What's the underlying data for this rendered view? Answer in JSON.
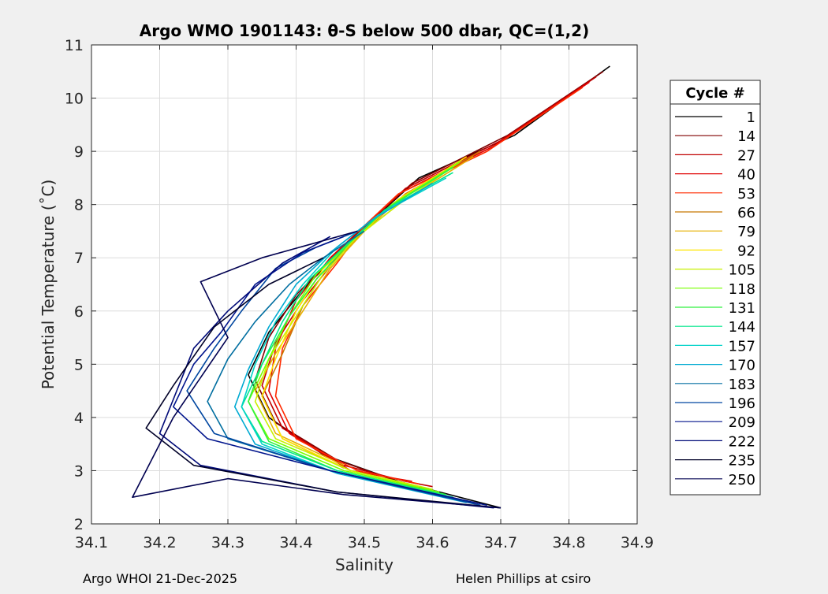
{
  "footer": {
    "left": "Argo WHOI 21-Dec-2025",
    "right": "Helen Phillips at csiro"
  },
  "chart_data": {
    "type": "line",
    "title": "Argo WMO 1901143: θ-S below 500 dbar,  QC=(1,2)",
    "xlabel": "Salinity",
    "ylabel": "Potential Temperature (˚C)",
    "xlim": [
      34.1,
      34.9
    ],
    "ylim": [
      2,
      11
    ],
    "xticks": [
      34.1,
      34.2,
      34.3,
      34.4,
      34.5,
      34.6,
      34.7,
      34.8,
      34.9
    ],
    "yticks": [
      2,
      3,
      4,
      5,
      6,
      7,
      8,
      9,
      10,
      11
    ],
    "grid": true,
    "legend": {
      "title": "Cycle #",
      "placement": "outside-right",
      "entries": [
        {
          "label": "1",
          "color": "#000000"
        },
        {
          "label": "14",
          "color": "#800000"
        },
        {
          "label": "27",
          "color": "#c00000"
        },
        {
          "label": "40",
          "color": "#e00000"
        },
        {
          "label": "53",
          "color": "#ff2a00"
        },
        {
          "label": "66",
          "color": "#c87800"
        },
        {
          "label": "79",
          "color": "#e6b000"
        },
        {
          "label": "92",
          "color": "#ffe600"
        },
        {
          "label": "105",
          "color": "#c8f000"
        },
        {
          "label": "118",
          "color": "#78ff00"
        },
        {
          "label": "131",
          "color": "#30f040"
        },
        {
          "label": "144",
          "color": "#00e68c"
        },
        {
          "label": "157",
          "color": "#00d2c8"
        },
        {
          "label": "170",
          "color": "#00aad2"
        },
        {
          "label": "183",
          "color": "#006ea0"
        },
        {
          "label": "196",
          "color": "#0046a0"
        },
        {
          "label": "209",
          "color": "#00148c"
        },
        {
          "label": "222",
          "color": "#000a78"
        },
        {
          "label": "235",
          "color": "#000028"
        },
        {
          "label": "250",
          "color": "#000050"
        }
      ]
    },
    "series": [
      {
        "cycle": 1,
        "color": "#000000",
        "s": [
          34.86,
          34.72,
          34.58,
          34.52,
          34.47,
          34.41,
          34.36,
          34.33,
          34.36,
          34.44,
          34.55,
          34.7
        ],
        "t": [
          10.6,
          9.3,
          8.5,
          7.8,
          7.2,
          6.4,
          5.6,
          4.8,
          4.0,
          3.3,
          2.8,
          2.3
        ]
      },
      {
        "cycle": 14,
        "color": "#800000",
        "s": [
          34.85,
          34.71,
          34.57,
          34.51,
          34.46,
          34.4,
          34.36,
          34.34,
          34.37,
          34.46,
          34.57,
          34.67
        ],
        "t": [
          10.5,
          9.3,
          8.4,
          7.7,
          7.1,
          6.3,
          5.5,
          4.7,
          3.9,
          3.2,
          2.7,
          2.35
        ]
      },
      {
        "cycle": 27,
        "color": "#c00000",
        "s": [
          34.84,
          34.7,
          34.56,
          34.51,
          34.46,
          34.41,
          34.37,
          34.35,
          34.38,
          34.47,
          34.56,
          34.6
        ],
        "t": [
          10.4,
          9.2,
          8.3,
          7.7,
          7.0,
          6.2,
          5.4,
          4.6,
          3.8,
          3.1,
          2.8,
          2.7
        ]
      },
      {
        "cycle": 40,
        "color": "#e00000",
        "s": [
          34.83,
          34.69,
          34.55,
          34.5,
          34.45,
          34.4,
          34.37,
          34.36,
          34.39,
          34.48,
          34.57
        ],
        "t": [
          10.3,
          9.1,
          8.2,
          7.6,
          7.0,
          6.2,
          5.3,
          4.5,
          3.7,
          3.0,
          2.8
        ]
      },
      {
        "cycle": 53,
        "color": "#ff2a00",
        "s": [
          34.82,
          34.68,
          34.55,
          34.5,
          34.46,
          34.41,
          34.38,
          34.37,
          34.4,
          34.49,
          34.58
        ],
        "t": [
          10.2,
          9.0,
          8.2,
          7.6,
          6.9,
          6.1,
          5.3,
          4.4,
          3.6,
          3.0,
          2.75
        ]
      },
      {
        "cycle": 66,
        "color": "#c87800",
        "s": [
          34.67,
          34.56,
          34.5,
          34.45,
          34.41,
          34.38,
          34.35,
          34.38,
          34.47
        ],
        "t": [
          9.0,
          8.2,
          7.5,
          6.9,
          6.1,
          5.2,
          4.4,
          3.6,
          3.05
        ]
      },
      {
        "cycle": 79,
        "color": "#e6b000",
        "s": [
          34.66,
          34.56,
          34.5,
          34.45,
          34.41,
          34.37,
          34.34,
          34.37,
          34.47
        ],
        "t": [
          8.9,
          8.1,
          7.5,
          6.8,
          6.0,
          5.2,
          4.5,
          3.7,
          3.1
        ]
      },
      {
        "cycle": 92,
        "color": "#ffe600",
        "s": [
          34.65,
          34.55,
          34.49,
          34.44,
          34.4,
          34.37,
          34.35,
          34.38,
          34.48,
          34.58
        ],
        "t": [
          8.9,
          8.1,
          7.4,
          6.8,
          6.0,
          5.1,
          4.4,
          3.6,
          3.0,
          2.7
        ]
      },
      {
        "cycle": 105,
        "color": "#c8f000",
        "s": [
          34.64,
          34.55,
          34.49,
          34.44,
          34.4,
          34.36,
          34.34,
          34.37,
          34.48,
          34.6
        ],
        "t": [
          8.8,
          8.0,
          7.4,
          6.7,
          5.9,
          5.1,
          4.3,
          3.6,
          3.0,
          2.65
        ]
      },
      {
        "cycle": 118,
        "color": "#78ff00",
        "s": [
          34.64,
          34.54,
          34.48,
          34.43,
          34.39,
          34.36,
          34.33,
          34.36,
          34.47,
          34.61
        ],
        "t": [
          8.8,
          8.0,
          7.3,
          6.7,
          5.9,
          5.1,
          4.3,
          3.6,
          3.0,
          2.6
        ]
      },
      {
        "cycle": 131,
        "color": "#30f040",
        "s": [
          34.63,
          34.53,
          34.48,
          34.43,
          34.39,
          34.35,
          34.33,
          34.36,
          34.46,
          34.62
        ],
        "t": [
          8.7,
          7.9,
          7.3,
          6.6,
          5.9,
          5.0,
          4.3,
          3.55,
          3.0,
          2.55
        ]
      },
      {
        "cycle": 144,
        "color": "#00e68c",
        "s": [
          34.63,
          34.53,
          34.47,
          34.42,
          34.38,
          34.35,
          34.32,
          34.35,
          34.46,
          34.63
        ],
        "t": [
          8.6,
          7.9,
          7.2,
          6.6,
          5.8,
          5.0,
          4.2,
          3.55,
          3.0,
          2.5
        ]
      },
      {
        "cycle": 157,
        "color": "#00d2c8",
        "s": [
          34.62,
          34.52,
          34.46,
          34.41,
          34.37,
          34.34,
          34.32,
          34.35,
          34.46,
          34.64
        ],
        "t": [
          8.5,
          7.8,
          7.2,
          6.5,
          5.8,
          5.0,
          4.2,
          3.5,
          2.95,
          2.45
        ]
      },
      {
        "cycle": 170,
        "color": "#00aad2",
        "s": [
          34.6,
          34.51,
          34.45,
          34.4,
          34.36,
          34.33,
          34.31,
          34.34,
          34.46,
          34.65
        ],
        "t": [
          8.4,
          7.7,
          7.1,
          6.5,
          5.7,
          4.9,
          4.2,
          3.5,
          2.95,
          2.4
        ]
      },
      {
        "cycle": 183,
        "color": "#006ea0",
        "s": [
          34.5,
          34.44,
          34.39,
          34.34,
          34.3,
          34.27,
          34.3,
          34.45,
          34.66
        ],
        "t": [
          7.5,
          7.0,
          6.5,
          5.8,
          5.1,
          4.3,
          3.6,
          3.0,
          2.4
        ]
      },
      {
        "cycle": 196,
        "color": "#0046a0",
        "s": [
          34.49,
          34.43,
          34.37,
          34.32,
          34.28,
          34.24,
          34.28,
          34.45,
          34.67
        ],
        "t": [
          7.5,
          7.2,
          6.8,
          6.0,
          5.3,
          4.5,
          3.7,
          3.0,
          2.35
        ]
      },
      {
        "cycle": 209,
        "color": "#00148c",
        "s": [
          34.47,
          34.41,
          34.34,
          34.29,
          34.25,
          34.22,
          34.27,
          34.45,
          34.68
        ],
        "t": [
          7.4,
          7.1,
          6.5,
          5.6,
          5.0,
          4.2,
          3.6,
          3.0,
          2.35
        ]
      },
      {
        "cycle": 222,
        "color": "#000a78",
        "s": [
          34.45,
          34.38,
          34.3,
          34.25,
          34.2,
          34.26,
          34.46,
          34.69
        ],
        "t": [
          7.4,
          6.9,
          6.0,
          5.3,
          3.7,
          3.1,
          2.6,
          2.3
        ]
      },
      {
        "cycle": 235,
        "color": "#000028",
        "s": [
          34.44,
          34.36,
          34.28,
          34.22,
          34.18,
          34.25,
          34.46,
          34.7
        ],
        "t": [
          7.0,
          6.5,
          5.7,
          4.6,
          3.8,
          3.1,
          2.6,
          2.3
        ]
      },
      {
        "cycle": 250,
        "color": "#000050",
        "s": [
          34.49,
          34.35,
          34.26,
          34.3,
          34.22,
          34.16,
          34.3,
          34.47,
          34.7
        ],
        "t": [
          7.5,
          7.0,
          6.55,
          5.5,
          4.0,
          2.5,
          2.85,
          2.55,
          2.3
        ]
      }
    ]
  }
}
